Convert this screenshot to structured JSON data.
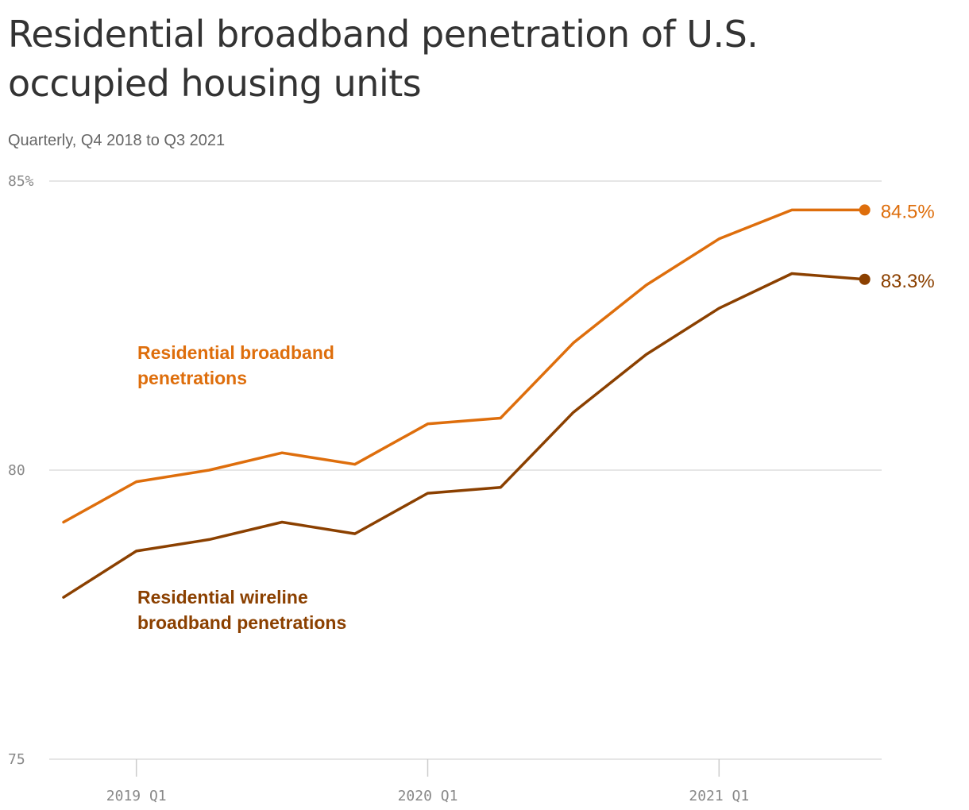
{
  "chart_data": {
    "type": "line",
    "title": "Residential broadband penetration of U.S. occupied housing units",
    "subtitle": "Quarterly, Q4 2018 to Q3 2021",
    "x": [
      "Q4 2018",
      "Q1 2019",
      "Q2 2019",
      "Q3 2019",
      "Q4 2019",
      "Q1 2020",
      "Q2 2020",
      "Q3 2020",
      "Q4 2020",
      "Q1 2021",
      "Q2 2021",
      "Q3 2021"
    ],
    "x_tick_labels": [
      {
        "index": 1,
        "label": "2019 Q1"
      },
      {
        "index": 5,
        "label": "2020 Q1"
      },
      {
        "index": 9,
        "label": "2021 Q1"
      }
    ],
    "ylim": [
      75,
      85
    ],
    "y_ticks": [
      {
        "value": 85,
        "label": "85%"
      },
      {
        "value": 80,
        "label": "80"
      },
      {
        "value": 75,
        "label": "75"
      }
    ],
    "grid": true,
    "series": [
      {
        "name": "Residential broadband penetrations",
        "color": "#de6e0c",
        "values": [
          79.1,
          79.8,
          80.0,
          80.3,
          80.1,
          80.8,
          80.9,
          82.2,
          83.2,
          84.0,
          84.5,
          84.5
        ],
        "end_label": "84.5%"
      },
      {
        "name": "Residential wireline broadband penetrations",
        "color": "#8b4000",
        "values": [
          77.8,
          78.6,
          78.8,
          79.1,
          78.9,
          79.6,
          79.7,
          81.0,
          82.0,
          82.8,
          83.4,
          83.3
        ],
        "end_label": "83.3%"
      }
    ]
  }
}
